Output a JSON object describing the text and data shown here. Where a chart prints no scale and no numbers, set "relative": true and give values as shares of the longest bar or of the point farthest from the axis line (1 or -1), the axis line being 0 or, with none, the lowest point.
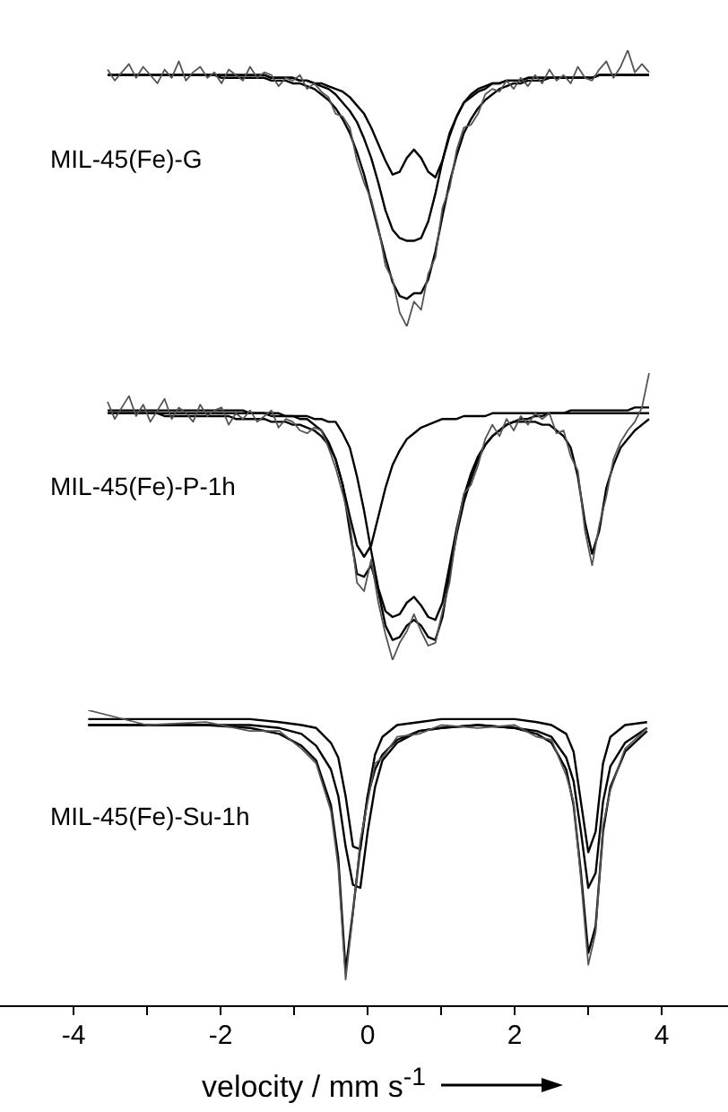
{
  "chart_data": [
    {
      "type": "line",
      "relative": true,
      "tick_labels": false,
      "annotations": [
        "MIL-45(Fe)-G"
      ],
      "categories": [
        null,
        null,
        null,
        null,
        null,
        null,
        null,
        null,
        null,
        null,
        null,
        null,
        null,
        null,
        null,
        null,
        null,
        null,
        null,
        null,
        null,
        null,
        null,
        null,
        null,
        null,
        null,
        null,
        null,
        null,
        null,
        null,
        null,
        null,
        null,
        null,
        null,
        null,
        null,
        null,
        null,
        null,
        null,
        null,
        null,
        null,
        null,
        null,
        null,
        null,
        null,
        null,
        null,
        null,
        null,
        null,
        null,
        null,
        null,
        null,
        null,
        null,
        null,
        null,
        null,
        null,
        null,
        null,
        null,
        null,
        null,
        null,
        null,
        null,
        null,
        null,
        null
      ],
      "series": [
        {
          "color": "#555555",
          "values": [
            0.93,
            0.89,
            0.92,
            0.95,
            0.9,
            0.94,
            0.91,
            0.88,
            0.93,
            0.9,
            0.96,
            0.89,
            0.92,
            0.94,
            0.9,
            0.92,
            0.88,
            0.93,
            0.91,
            0.89,
            0.94,
            0.9,
            0.92,
            0.91,
            0.87,
            0.9,
            0.89,
            0.91,
            0.86,
            0.88,
            0.85,
            0.83,
            0.77,
            0.76,
            0.72,
            0.6,
            0.52,
            0.46,
            0.36,
            0.22,
            0.17,
            0.05,
            0.0,
            0.09,
            0.06,
            0.19,
            0.25,
            0.43,
            0.5,
            0.64,
            0.72,
            0.73,
            0.77,
            0.84,
            0.86,
            0.85,
            0.89,
            0.86,
            0.9,
            0.87,
            0.91,
            0.88,
            0.93,
            0.89,
            0.91,
            0.88,
            0.94,
            0.9,
            0.89,
            0.93,
            0.96,
            0.9,
            0.94,
            1.0,
            0.92,
            0.95,
            0.92
          ]
        },
        {
          "color": "#000000",
          "values": [
            0.91,
            0.91,
            0.91,
            0.91,
            0.91,
            0.91,
            0.91,
            0.91,
            0.91,
            0.91,
            0.91,
            0.91,
            0.91,
            0.91,
            0.91,
            0.91,
            0.9,
            0.9,
            0.9,
            0.9,
            0.9,
            0.9,
            0.9,
            0.89,
            0.89,
            0.89,
            0.88,
            0.88,
            0.87,
            0.86,
            0.84,
            0.82,
            0.79,
            0.75,
            0.7,
            0.63,
            0.55,
            0.45,
            0.35,
            0.25,
            0.16,
            0.11,
            0.1,
            0.12,
            0.12,
            0.17,
            0.27,
            0.4,
            0.52,
            0.62,
            0.7,
            0.75,
            0.79,
            0.82,
            0.84,
            0.86,
            0.87,
            0.88,
            0.88,
            0.89,
            0.89,
            0.89,
            0.9,
            0.9,
            0.9,
            0.9,
            0.9,
            0.9,
            0.9,
            0.91,
            0.91,
            0.91,
            0.91,
            0.91,
            0.91,
            0.91,
            0.91
          ]
        },
        {
          "color": "#000000",
          "values": [
            0.91,
            0.91,
            0.91,
            0.91,
            0.91,
            0.91,
            0.91,
            0.91,
            0.91,
            0.91,
            0.91,
            0.91,
            0.91,
            0.91,
            0.91,
            0.91,
            0.91,
            0.91,
            0.91,
            0.91,
            0.91,
            0.91,
            0.91,
            0.9,
            0.9,
            0.9,
            0.9,
            0.89,
            0.89,
            0.88,
            0.88,
            0.87,
            0.86,
            0.85,
            0.83,
            0.8,
            0.77,
            0.72,
            0.66,
            0.6,
            0.55,
            0.56,
            0.61,
            0.64,
            0.61,
            0.56,
            0.54,
            0.6,
            0.69,
            0.76,
            0.81,
            0.84,
            0.86,
            0.87,
            0.88,
            0.88,
            0.89,
            0.89,
            0.89,
            0.9,
            0.9,
            0.9,
            0.9,
            0.9,
            0.9,
            0.9,
            0.9,
            0.9,
            0.9,
            0.91,
            0.91,
            0.91,
            0.91,
            0.91,
            0.91,
            0.91,
            0.91
          ]
        },
        {
          "color": "#000000",
          "values": [
            0.91,
            0.91,
            0.91,
            0.91,
            0.91,
            0.91,
            0.91,
            0.91,
            0.91,
            0.91,
            0.91,
            0.91,
            0.91,
            0.91,
            0.91,
            0.91,
            0.91,
            0.91,
            0.91,
            0.91,
            0.91,
            0.91,
            0.91,
            0.9,
            0.9,
            0.9,
            0.9,
            0.89,
            0.89,
            0.88,
            0.87,
            0.86,
            0.84,
            0.81,
            0.78,
            0.74,
            0.68,
            0.61,
            0.52,
            0.42,
            0.35,
            0.32,
            0.31,
            0.31,
            0.32,
            0.38,
            0.48,
            0.6,
            0.7,
            0.76,
            0.81,
            0.83,
            0.85,
            0.86,
            0.88,
            0.88,
            0.89,
            0.89,
            0.89,
            0.9,
            0.9,
            0.9,
            0.9,
            0.9,
            0.9,
            0.9,
            0.9,
            0.9,
            0.9,
            0.91,
            0.91,
            0.91,
            0.91,
            0.91,
            0.91,
            0.91,
            0.91
          ]
        }
      ]
    },
    {
      "type": "line",
      "relative": true,
      "tick_labels": false,
      "annotations": [
        "MIL-45(Fe)-P-1h"
      ],
      "categories": [
        null,
        null,
        null,
        null,
        null,
        null,
        null,
        null,
        null,
        null,
        null,
        null,
        null,
        null,
        null,
        null,
        null,
        null,
        null,
        null,
        null,
        null,
        null,
        null,
        null,
        null,
        null,
        null,
        null,
        null,
        null,
        null,
        null,
        null,
        null,
        null,
        null,
        null,
        null,
        null,
        null,
        null,
        null,
        null,
        null,
        null,
        null,
        null,
        null,
        null,
        null,
        null,
        null,
        null,
        null,
        null,
        null,
        null,
        null,
        null,
        null,
        null,
        null,
        null,
        null,
        null,
        null,
        null,
        null,
        null,
        null,
        null,
        null,
        null,
        null,
        null,
        null
      ],
      "series": [
        {
          "color": "#555555",
          "values": [
            0.9,
            0.84,
            0.88,
            0.92,
            0.85,
            0.89,
            0.83,
            0.87,
            0.91,
            0.84,
            0.88,
            0.86,
            0.83,
            0.89,
            0.85,
            0.87,
            0.88,
            0.82,
            0.86,
            0.84,
            0.87,
            0.83,
            0.85,
            0.87,
            0.81,
            0.84,
            0.83,
            0.8,
            0.79,
            0.81,
            0.8,
            0.74,
            0.67,
            0.58,
            0.48,
            0.27,
            0.24,
            0.35,
            0.2,
            0.09,
            0.0,
            0.06,
            0.1,
            0.16,
            0.1,
            0.05,
            0.06,
            0.17,
            0.27,
            0.45,
            0.58,
            0.61,
            0.68,
            0.77,
            0.82,
            0.78,
            0.84,
            0.8,
            0.85,
            0.82,
            0.86,
            0.84,
            0.86,
            0.79,
            0.8,
            0.71,
            0.66,
            0.45,
            0.33,
            0.47,
            0.57,
            0.7,
            0.76,
            0.8,
            0.83,
            0.88,
            1.0
          ]
        },
        {
          "color": "#000000",
          "values": [
            0.86,
            0.86,
            0.86,
            0.86,
            0.86,
            0.86,
            0.86,
            0.86,
            0.85,
            0.85,
            0.85,
            0.85,
            0.85,
            0.85,
            0.85,
            0.85,
            0.85,
            0.85,
            0.84,
            0.84,
            0.84,
            0.84,
            0.84,
            0.83,
            0.83,
            0.83,
            0.82,
            0.82,
            0.81,
            0.8,
            0.78,
            0.75,
            0.7,
            0.61,
            0.45,
            0.3,
            0.29,
            0.33,
            0.24,
            0.12,
            0.07,
            0.08,
            0.12,
            0.14,
            0.12,
            0.08,
            0.07,
            0.15,
            0.3,
            0.44,
            0.55,
            0.63,
            0.7,
            0.75,
            0.78,
            0.8,
            0.82,
            0.83,
            0.83,
            0.83,
            0.83,
            0.82,
            0.82,
            0.8,
            0.78,
            0.74,
            0.64,
            0.48,
            0.37,
            0.45,
            0.6,
            0.68,
            0.74,
            0.77,
            0.8,
            0.82,
            0.84
          ]
        },
        {
          "color": "#000000",
          "values": [
            0.87,
            0.87,
            0.87,
            0.87,
            0.87,
            0.87,
            0.87,
            0.87,
            0.87,
            0.87,
            0.87,
            0.87,
            0.87,
            0.87,
            0.87,
            0.87,
            0.87,
            0.87,
            0.87,
            0.87,
            0.86,
            0.86,
            0.86,
            0.86,
            0.86,
            0.85,
            0.85,
            0.85,
            0.85,
            0.84,
            0.84,
            0.83,
            0.83,
            0.79,
            0.74,
            0.64,
            0.52,
            0.38,
            0.25,
            0.17,
            0.15,
            0.16,
            0.2,
            0.22,
            0.19,
            0.15,
            0.14,
            0.2,
            0.33,
            0.46,
            0.57,
            0.65,
            0.71,
            0.75,
            0.78,
            0.8,
            0.82,
            0.83,
            0.84,
            0.84,
            0.85,
            0.85,
            0.86,
            0.86,
            0.86,
            0.87,
            0.87,
            0.87,
            0.87,
            0.87,
            0.87,
            0.87,
            0.87,
            0.87,
            0.88,
            0.88,
            0.88
          ]
        },
        {
          "color": "#000000",
          "values": [
            0.86,
            0.86,
            0.86,
            0.86,
            0.86,
            0.86,
            0.86,
            0.86,
            0.86,
            0.86,
            0.86,
            0.86,
            0.86,
            0.86,
            0.86,
            0.86,
            0.86,
            0.86,
            0.86,
            0.86,
            0.86,
            0.86,
            0.86,
            0.85,
            0.85,
            0.85,
            0.85,
            0.84,
            0.84,
            0.82,
            0.8,
            0.76,
            0.7,
            0.61,
            0.5,
            0.4,
            0.36,
            0.4,
            0.5,
            0.6,
            0.68,
            0.73,
            0.77,
            0.79,
            0.81,
            0.82,
            0.83,
            0.84,
            0.84,
            0.84,
            0.85,
            0.85,
            0.85,
            0.85,
            0.86,
            0.86,
            0.86,
            0.86,
            0.86,
            0.86,
            0.86,
            0.86,
            0.86,
            0.86,
            0.86,
            0.86,
            0.86,
            0.86,
            0.86,
            0.86,
            0.86,
            0.86,
            0.86,
            0.86,
            0.86,
            0.86,
            0.86
          ]
        }
      ]
    },
    {
      "type": "line",
      "relative": true,
      "xlim": [
        -5,
        4.9
      ],
      "tick_labels": "x",
      "annotations": [
        "MIL-45(Fe)-Su-1h"
      ],
      "xlabel": "velocity / mm s$^{-1}$",
      "xticks": [
        -4,
        {
          "value": -3,
          "label": null
        },
        -2,
        {
          "value": -1,
          "label": null
        },
        0,
        {
          "value": 1,
          "label": null
        },
        2,
        {
          "value": 3,
          "label": null
        },
        4
      ],
      "x": [
        -3.8,
        -3.0,
        -2.2,
        -1.6,
        -1.2,
        -0.9,
        -0.7,
        -0.5,
        -0.4,
        -0.3,
        -0.2,
        -0.1,
        0,
        0.1,
        0.2,
        0.4,
        0.7,
        1.0,
        1.5,
        2.0,
        2.3,
        2.5,
        2.7,
        2.8,
        2.9,
        3.0,
        3.1,
        3.2,
        3.3,
        3.5,
        3.8
      ],
      "series": [
        {
          "color": "#555555",
          "values": [
            1.0,
            0.95,
            0.96,
            0.93,
            0.93,
            0.87,
            0.82,
            0.66,
            0.47,
            0.09,
            0.31,
            0.56,
            0.69,
            0.82,
            0.84,
            0.91,
            0.92,
            0.95,
            0.94,
            0.95,
            0.91,
            0.9,
            0.78,
            0.69,
            0.43,
            0.14,
            0.25,
            0.61,
            0.73,
            0.87,
            0.94
          ]
        },
        {
          "color": "#000000",
          "values": [
            0.95,
            0.95,
            0.95,
            0.94,
            0.92,
            0.88,
            0.83,
            0.68,
            0.5,
            0.12,
            0.32,
            0.54,
            0.71,
            0.8,
            0.85,
            0.9,
            0.93,
            0.94,
            0.95,
            0.94,
            0.92,
            0.89,
            0.8,
            0.68,
            0.45,
            0.18,
            0.27,
            0.59,
            0.74,
            0.86,
            0.93
          ]
        },
        {
          "color": "#000000",
          "values": [
            0.95,
            0.95,
            0.95,
            0.95,
            0.94,
            0.92,
            0.88,
            0.8,
            0.71,
            0.54,
            0.41,
            0.4,
            0.59,
            0.74,
            0.83,
            0.89,
            0.93,
            0.94,
            0.95,
            0.94,
            0.93,
            0.91,
            0.84,
            0.76,
            0.59,
            0.4,
            0.45,
            0.69,
            0.81,
            0.89,
            0.94
          ]
        },
        {
          "color": "#000000",
          "values": [
            0.97,
            0.97,
            0.97,
            0.97,
            0.96,
            0.95,
            0.94,
            0.89,
            0.84,
            0.71,
            0.54,
            0.53,
            0.71,
            0.85,
            0.91,
            0.95,
            0.96,
            0.97,
            0.97,
            0.97,
            0.96,
            0.95,
            0.92,
            0.86,
            0.69,
            0.52,
            0.59,
            0.82,
            0.91,
            0.95,
            0.96
          ]
        }
      ]
    }
  ]
}
